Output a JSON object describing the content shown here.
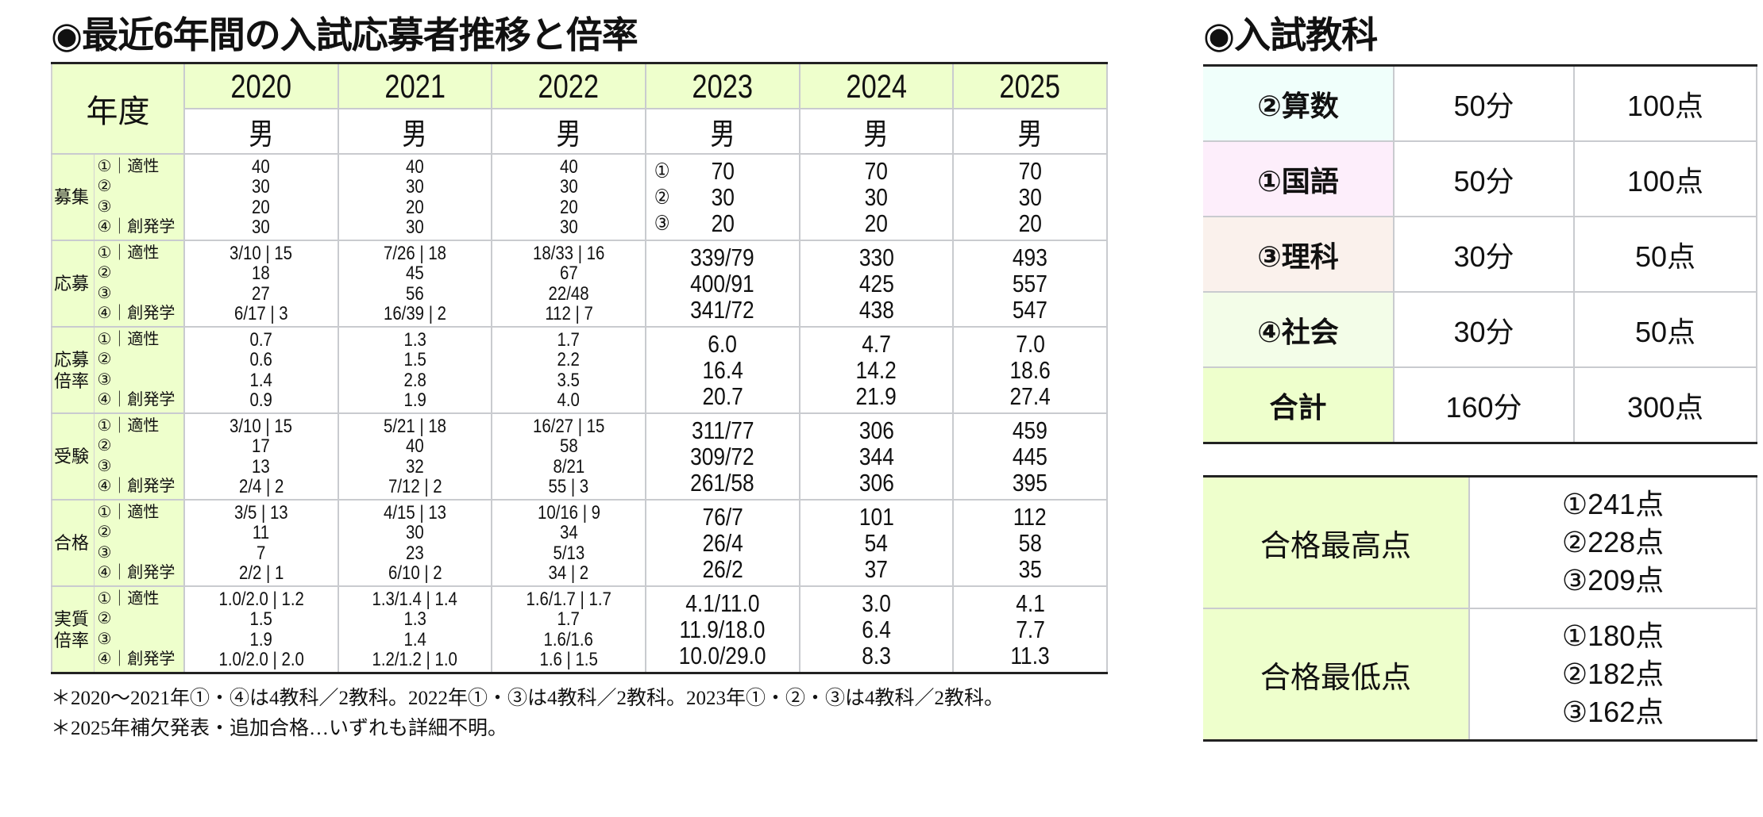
{
  "left_title": "◉最近6年間の入試応募者推移と倍率",
  "right_title": "◉入試教科",
  "table": {
    "header_label": "年度",
    "years": [
      "2020",
      "2021",
      "2022",
      "2023",
      "2024",
      "2025"
    ],
    "gender": [
      "男",
      "男",
      "男",
      "男",
      "男",
      "男"
    ],
    "sub_labels": [
      "①｜適性",
      "②",
      "③",
      "④｜創発学"
    ],
    "recruit_marks_2023": [
      "①",
      "②",
      "③"
    ],
    "groups": [
      {
        "label": "募集",
        "cells": [
          [
            "40",
            "30",
            "20",
            "30"
          ],
          [
            "40",
            "30",
            "20",
            "30"
          ],
          [
            "40",
            "30",
            "20",
            "30"
          ],
          [
            "70",
            "30",
            "20"
          ],
          [
            "70",
            "30",
            "20"
          ],
          [
            "70",
            "30",
            "20"
          ]
        ]
      },
      {
        "label": "応募",
        "cells": [
          [
            "3/10 | 15",
            "18",
            "27",
            "6/17 | 3"
          ],
          [
            "7/26 | 18",
            "45",
            "56",
            "16/39 | 2"
          ],
          [
            "18/33 | 16",
            "67",
            "22/48",
            "112 | 7"
          ],
          [
            "339/79",
            "400/91",
            "341/72"
          ],
          [
            "330",
            "425",
            "438"
          ],
          [
            "493",
            "557",
            "547"
          ]
        ]
      },
      {
        "label": "応募\n倍率",
        "cells": [
          [
            "0.7",
            "0.6",
            "1.4",
            "0.9"
          ],
          [
            "1.3",
            "1.5",
            "2.8",
            "1.9"
          ],
          [
            "1.7",
            "2.2",
            "3.5",
            "4.0"
          ],
          [
            "6.0",
            "16.4",
            "20.7"
          ],
          [
            "4.7",
            "14.2",
            "21.9"
          ],
          [
            "7.0",
            "18.6",
            "27.4"
          ]
        ]
      },
      {
        "label": "受験",
        "cells": [
          [
            "3/10 | 15",
            "17",
            "13",
            "2/4 | 2"
          ],
          [
            "5/21 | 18",
            "40",
            "32",
            "7/12 | 2"
          ],
          [
            "16/27 | 15",
            "58",
            "8/21",
            "55 | 3"
          ],
          [
            "311/77",
            "309/72",
            "261/58"
          ],
          [
            "306",
            "344",
            "306"
          ],
          [
            "459",
            "445",
            "395"
          ]
        ]
      },
      {
        "label": "合格",
        "cells": [
          [
            "3/5 | 13",
            "11",
            "7",
            "2/2 | 1"
          ],
          [
            "4/15 | 13",
            "30",
            "23",
            "6/10 | 2"
          ],
          [
            "10/16 | 9",
            "34",
            "5/13",
            "34 | 2"
          ],
          [
            "76/7",
            "26/4",
            "26/2"
          ],
          [
            "101",
            "54",
            "37"
          ],
          [
            "112",
            "58",
            "35"
          ]
        ]
      },
      {
        "label": "実質\n倍率",
        "cells": [
          [
            "1.0/2.0 | 1.2",
            "1.5",
            "1.9",
            "1.0/2.0 | 2.0"
          ],
          [
            "1.3/1.4 | 1.4",
            "1.3",
            "1.4",
            "1.2/1.2 | 1.0"
          ],
          [
            "1.6/1.7 | 1.7",
            "1.7",
            "1.6/1.6",
            "1.6 | 1.5"
          ],
          [
            "4.1/11.0",
            "11.9/18.0",
            "10.0/29.0"
          ],
          [
            "3.0",
            "6.4",
            "8.3"
          ],
          [
            "4.1",
            "7.7",
            "11.3"
          ]
        ]
      }
    ]
  },
  "notes": [
    "＊2020～2021年①・④は4教科／2教科。2022年①・③は4教科／2教科。2023年①・②・③は4教科／2教科。",
    "＊2025年補欠発表・追加合格…いずれも詳細不明。"
  ],
  "subjects": [
    {
      "name": "②算数",
      "time": "50分",
      "points": "100点",
      "color": "#f0fffb"
    },
    {
      "name": "①国語",
      "time": "50分",
      "points": "100点",
      "color": "#fdeefb"
    },
    {
      "name": "③理科",
      "time": "30分",
      "points": "50点",
      "color": "#faf1ec"
    },
    {
      "name": "④社会",
      "time": "30分",
      "points": "50点",
      "color": "#f3fde8"
    },
    {
      "name": "合計",
      "time": "160分",
      "points": "300点",
      "color": "#eeffcc"
    }
  ],
  "pass_scores": [
    {
      "label": "合格最高点",
      "values": [
        "①241点",
        "②228点",
        "③209点"
      ]
    },
    {
      "label": "合格最低点",
      "values": [
        "①180点",
        "②182点",
        "③162点"
      ]
    }
  ],
  "colors": {
    "header_green": "#eeffcc",
    "grid": "#c9cbcf",
    "rule": "#222222"
  }
}
